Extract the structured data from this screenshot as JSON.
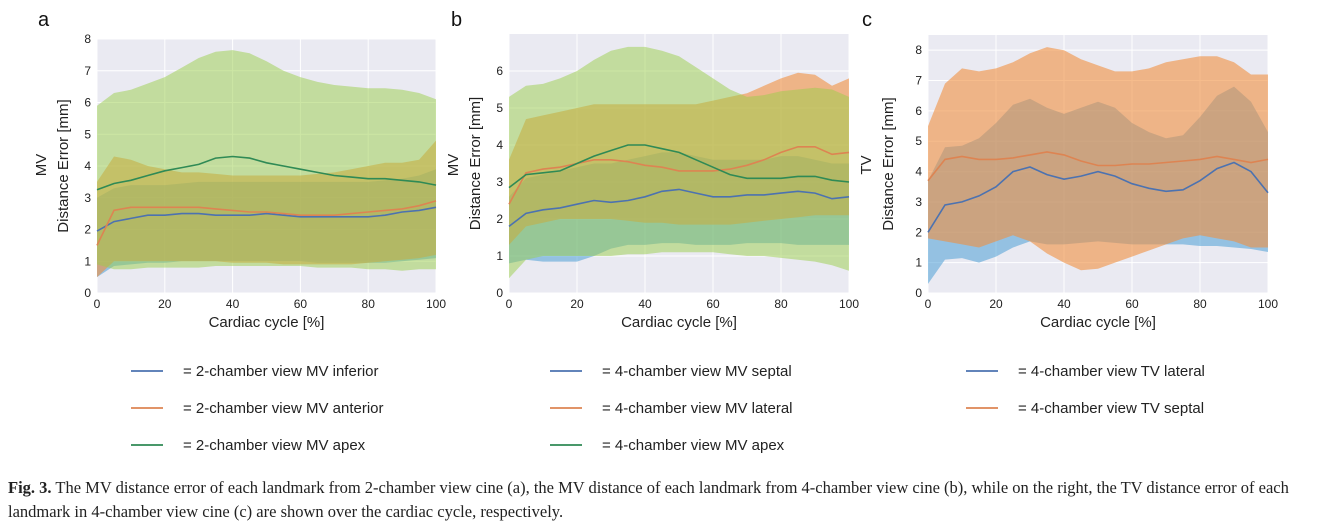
{
  "caption": {
    "label": "Fig. 3.",
    "text": "The MV distance error of each landmark from 2-chamber view cine (a), the MV distance of each landmark from 4-chamber view cine (b), while on the right, the TV distance error of each landmark in 4-chamber view cine (c) are shown over the cardiac cycle, respectively."
  },
  "chart_data": [
    {
      "panel": "a",
      "type": "line",
      "xlabel": "Cardiac cycle [%]",
      "ylabel": "Distance Error [mm]",
      "ylabel_top": "MV",
      "xlim": [
        0,
        100
      ],
      "ylim": [
        0,
        8
      ],
      "xticks": [
        "0",
        "20",
        "40",
        "60",
        "80",
        "100"
      ],
      "yticks": [
        "0",
        "1",
        "2",
        "3",
        "4",
        "5",
        "6",
        "7",
        "8"
      ],
      "x": [
        0,
        5,
        10,
        15,
        20,
        25,
        30,
        35,
        40,
        45,
        50,
        55,
        60,
        65,
        70,
        75,
        80,
        85,
        90,
        95,
        100
      ],
      "series": [
        {
          "legend": "= 2-chamber view MV inferior",
          "color": "#4c72b0",
          "values": [
            1.95,
            2.25,
            2.35,
            2.45,
            2.45,
            2.5,
            2.5,
            2.45,
            2.45,
            2.45,
            2.5,
            2.45,
            2.4,
            2.4,
            2.4,
            2.4,
            2.4,
            2.45,
            2.55,
            2.6,
            2.7
          ],
          "lower": [
            0.5,
            0.85,
            0.9,
            0.95,
            0.95,
            1.0,
            1.0,
            1.0,
            1.0,
            1.0,
            1.0,
            1.0,
            1.0,
            0.95,
            0.95,
            0.95,
            0.95,
            0.95,
            1.0,
            1.05,
            1.1
          ],
          "upper": [
            3.0,
            3.3,
            3.4,
            3.4,
            3.4,
            3.45,
            3.5,
            3.5,
            3.5,
            3.5,
            3.5,
            3.5,
            3.5,
            3.5,
            3.5,
            3.5,
            3.5,
            3.55,
            3.6,
            3.7,
            3.9
          ]
        },
        {
          "legend": "= 2-chamber view MV anterior",
          "color": "#dd8452",
          "values": [
            1.5,
            2.6,
            2.7,
            2.7,
            2.7,
            2.7,
            2.7,
            2.65,
            2.6,
            2.55,
            2.55,
            2.5,
            2.45,
            2.45,
            2.45,
            2.5,
            2.55,
            2.6,
            2.65,
            2.75,
            2.9
          ],
          "lower": [
            0.5,
            1.0,
            1.0,
            1.0,
            1.0,
            1.0,
            1.0,
            1.0,
            0.95,
            0.95,
            0.95,
            0.9,
            0.9,
            0.9,
            0.9,
            0.9,
            0.95,
            1.0,
            1.05,
            1.1,
            1.2
          ],
          "upper": [
            3.5,
            4.3,
            4.2,
            4.0,
            3.9,
            3.8,
            3.8,
            3.75,
            3.7,
            3.7,
            3.7,
            3.7,
            3.7,
            3.75,
            3.8,
            3.9,
            4.0,
            4.1,
            4.1,
            4.2,
            4.8
          ]
        },
        {
          "legend": "= 2-chamber view MV apex",
          "color": "#2f8a55",
          "values": [
            3.25,
            3.45,
            3.55,
            3.7,
            3.85,
            3.95,
            4.05,
            4.25,
            4.3,
            4.25,
            4.1,
            4.0,
            3.9,
            3.8,
            3.7,
            3.65,
            3.6,
            3.6,
            3.55,
            3.5,
            3.4
          ],
          "lower": [
            0.9,
            0.75,
            0.75,
            0.8,
            0.8,
            0.8,
            0.8,
            0.85,
            0.85,
            0.85,
            0.85,
            0.85,
            0.85,
            0.8,
            0.8,
            0.8,
            0.75,
            0.75,
            0.7,
            0.75,
            0.75
          ],
          "upper": [
            5.9,
            6.3,
            6.4,
            6.6,
            6.8,
            7.1,
            7.4,
            7.6,
            7.65,
            7.55,
            7.3,
            7.0,
            6.8,
            6.65,
            6.55,
            6.5,
            6.45,
            6.45,
            6.4,
            6.3,
            6.1
          ]
        }
      ]
    },
    {
      "panel": "b",
      "type": "line",
      "xlabel": "Cardiac cycle [%]",
      "ylabel": "Distance Error [mm]",
      "ylabel_top": "MV",
      "xlim": [
        0,
        100
      ],
      "ylim": [
        0,
        7
      ],
      "xticks": [
        "0",
        "20",
        "40",
        "60",
        "80",
        "100"
      ],
      "yticks": [
        "0",
        "1",
        "2",
        "3",
        "4",
        "5",
        "6"
      ],
      "x": [
        0,
        5,
        10,
        15,
        20,
        25,
        30,
        35,
        40,
        45,
        50,
        55,
        60,
        65,
        70,
        75,
        80,
        85,
        90,
        95,
        100
      ],
      "series": [
        {
          "legend": "= 4-chamber view MV septal",
          "color": "#4c72b0",
          "values": [
            1.8,
            2.15,
            2.25,
            2.3,
            2.4,
            2.5,
            2.45,
            2.5,
            2.6,
            2.75,
            2.8,
            2.7,
            2.6,
            2.6,
            2.65,
            2.65,
            2.7,
            2.75,
            2.7,
            2.55,
            2.6
          ],
          "lower": [
            0.8,
            0.9,
            0.85,
            0.85,
            0.85,
            1.0,
            1.2,
            1.3,
            1.3,
            1.35,
            1.35,
            1.3,
            1.3,
            1.3,
            1.35,
            1.35,
            1.35,
            1.3,
            1.3,
            1.3,
            1.3
          ],
          "upper": [
            2.6,
            3.1,
            3.2,
            3.3,
            3.4,
            3.5,
            3.5,
            3.6,
            3.7,
            3.8,
            3.8,
            3.7,
            3.6,
            3.6,
            3.6,
            3.6,
            3.7,
            3.7,
            3.6,
            3.5,
            3.5
          ]
        },
        {
          "legend": "= 4-chamber view MV lateral",
          "color": "#dd8452",
          "values": [
            2.4,
            3.25,
            3.35,
            3.4,
            3.5,
            3.6,
            3.6,
            3.55,
            3.45,
            3.4,
            3.3,
            3.3,
            3.3,
            3.35,
            3.45,
            3.6,
            3.8,
            3.95,
            3.95,
            3.75,
            3.8
          ],
          "lower": [
            1.3,
            1.8,
            1.9,
            2.0,
            2.0,
            2.0,
            2.0,
            1.95,
            1.9,
            1.9,
            1.85,
            1.85,
            1.85,
            1.85,
            1.9,
            1.95,
            2.0,
            2.05,
            2.1,
            2.1,
            2.1
          ],
          "upper": [
            3.6,
            4.7,
            4.8,
            4.9,
            5.0,
            5.1,
            5.1,
            5.1,
            5.1,
            5.1,
            5.1,
            5.1,
            5.2,
            5.3,
            5.4,
            5.6,
            5.8,
            5.95,
            5.9,
            5.6,
            5.8
          ]
        },
        {
          "legend": "= 4-chamber view MV apex",
          "color": "#2f8a55",
          "values": [
            2.85,
            3.2,
            3.25,
            3.3,
            3.5,
            3.7,
            3.85,
            4.0,
            4.0,
            3.9,
            3.8,
            3.6,
            3.4,
            3.2,
            3.1,
            3.1,
            3.1,
            3.15,
            3.15,
            3.05,
            3.0
          ],
          "lower": [
            0.4,
            0.9,
            1.0,
            1.0,
            1.0,
            1.0,
            1.0,
            1.05,
            1.05,
            1.1,
            1.1,
            1.1,
            1.1,
            1.05,
            1.0,
            1.0,
            0.95,
            0.9,
            0.85,
            0.75,
            0.6
          ],
          "upper": [
            5.3,
            5.6,
            5.65,
            5.8,
            6.0,
            6.3,
            6.55,
            6.65,
            6.65,
            6.55,
            6.4,
            6.1,
            5.8,
            5.5,
            5.3,
            5.35,
            5.45,
            5.5,
            5.55,
            5.5,
            5.3
          ]
        }
      ]
    },
    {
      "panel": "c",
      "type": "line",
      "xlabel": "Cardiac cycle [%]",
      "ylabel": "Distance Error [mm]",
      "ylabel_top": "TV",
      "xlim": [
        0,
        100
      ],
      "ylim": [
        0,
        8.5
      ],
      "xticks": [
        "0",
        "20",
        "40",
        "60",
        "80",
        "100"
      ],
      "yticks": [
        "0",
        "1",
        "2",
        "3",
        "4",
        "5",
        "6",
        "7",
        "8"
      ],
      "x": [
        0,
        5,
        10,
        15,
        20,
        25,
        30,
        35,
        40,
        45,
        50,
        55,
        60,
        65,
        70,
        75,
        80,
        85,
        90,
        95,
        100
      ],
      "series": [
        {
          "legend": "= 4-chamber view TV lateral",
          "color": "#4c72b0",
          "values": [
            2.0,
            2.9,
            3.0,
            3.2,
            3.5,
            4.0,
            4.15,
            3.9,
            3.75,
            3.85,
            4.0,
            3.85,
            3.6,
            3.45,
            3.35,
            3.4,
            3.7,
            4.1,
            4.3,
            4.0,
            3.3
          ],
          "lower": [
            0.3,
            1.1,
            1.15,
            1.0,
            1.2,
            1.5,
            1.7,
            1.6,
            1.6,
            1.65,
            1.7,
            1.65,
            1.6,
            1.6,
            1.6,
            1.6,
            1.55,
            1.55,
            1.5,
            1.45,
            1.35
          ],
          "upper": [
            3.7,
            4.8,
            4.85,
            5.1,
            5.6,
            6.2,
            6.4,
            6.1,
            5.9,
            6.1,
            6.3,
            6.1,
            5.6,
            5.3,
            5.1,
            5.2,
            5.8,
            6.5,
            6.8,
            6.3,
            5.3
          ]
        },
        {
          "legend": "= 4-chamber view TV septal",
          "color": "#dd8452",
          "values": [
            3.7,
            4.4,
            4.5,
            4.4,
            4.4,
            4.45,
            4.55,
            4.65,
            4.55,
            4.35,
            4.2,
            4.2,
            4.25,
            4.25,
            4.3,
            4.35,
            4.4,
            4.5,
            4.4,
            4.3,
            4.4
          ],
          "lower": [
            1.8,
            1.7,
            1.6,
            1.5,
            1.7,
            1.9,
            1.7,
            1.3,
            1.0,
            0.75,
            0.8,
            1.0,
            1.2,
            1.4,
            1.6,
            1.8,
            1.9,
            1.8,
            1.7,
            1.5,
            1.5
          ],
          "upper": [
            5.5,
            6.9,
            7.4,
            7.3,
            7.4,
            7.6,
            7.9,
            8.1,
            8.0,
            7.7,
            7.5,
            7.3,
            7.3,
            7.4,
            7.6,
            7.7,
            7.8,
            7.8,
            7.6,
            7.2,
            7.2
          ]
        }
      ]
    }
  ]
}
